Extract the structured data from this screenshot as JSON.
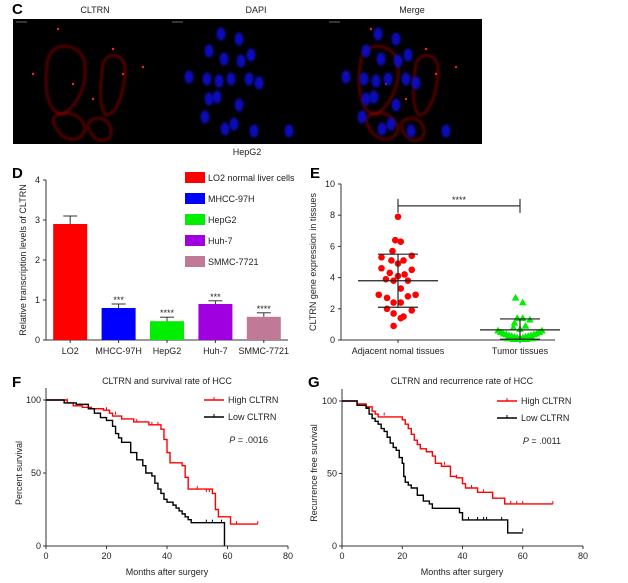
{
  "panel_labels": {
    "c": "C",
    "d": "D",
    "e": "E",
    "f": "F",
    "g": "G"
  },
  "panel_c": {
    "titles": [
      "CLTRN",
      "DAPI",
      "Merge"
    ],
    "caption": "HepG2",
    "colors": {
      "cltrn": "#b00000",
      "dapi": "#1010d0"
    }
  },
  "chart_data": [
    {
      "id": "D",
      "type": "bar",
      "title": "",
      "categories": [
        "LO2",
        "MHCC-97H",
        "HepG2",
        "Huh-7",
        "SMMC-7721"
      ],
      "values": [
        2.9,
        0.8,
        0.47,
        0.9,
        0.58
      ],
      "errors": [
        0.2,
        0.1,
        0.1,
        0.08,
        0.1
      ],
      "significance": [
        "",
        "***",
        "****",
        "***",
        "****"
      ],
      "colors": [
        "#ff0000",
        "#0000ff",
        "#00ee00",
        "#a000e0",
        "#c07a98"
      ],
      "legend": [
        "LO2 normal liver cells",
        "MHCC-97H",
        "HepG2",
        "Huh-7",
        "SMMC-7721"
      ],
      "legend_position": "top-right",
      "xlabel": "",
      "ylabel": "Relative transcription levels of CLTRN",
      "ylim": [
        0,
        4
      ],
      "yticks": [
        0,
        1,
        2,
        3,
        4
      ]
    },
    {
      "id": "E",
      "type": "scatter",
      "categories": [
        "Adjacent nomal tissues",
        "Tumor tissues"
      ],
      "ylabel": "CLTRN gene expression in tissues",
      "ylim": [
        0,
        10
      ],
      "yticks": [
        0,
        2,
        4,
        6,
        8,
        10
      ],
      "significance": "****",
      "series": [
        {
          "name": "Adjacent nomal tissues",
          "color": "#ff0000",
          "marker": "circle",
          "mean": 3.8,
          "sd_low": 2.1,
          "sd_high": 5.5,
          "points": [
            [
              0.0,
              7.9
            ],
            [
              -0.05,
              6.4
            ],
            [
              0.05,
              6.3
            ],
            [
              -0.1,
              5.7
            ],
            [
              -0.3,
              5.3
            ],
            [
              -0.12,
              5.1
            ],
            [
              0.0,
              4.9
            ],
            [
              0.1,
              5.1
            ],
            [
              0.25,
              5.4
            ],
            [
              -0.3,
              4.6
            ],
            [
              -0.15,
              4.3
            ],
            [
              0.0,
              4.1
            ],
            [
              0.12,
              4.2
            ],
            [
              0.25,
              4.5
            ],
            [
              -0.22,
              3.9
            ],
            [
              -0.08,
              3.8
            ],
            [
              0.18,
              3.8
            ],
            [
              0.05,
              3.3
            ],
            [
              -0.35,
              2.9
            ],
            [
              -0.2,
              2.7
            ],
            [
              0.18,
              2.8
            ],
            [
              0.32,
              2.9
            ],
            [
              -0.08,
              2.4
            ],
            [
              0.05,
              2.4
            ],
            [
              -0.2,
              2.0
            ],
            [
              0.25,
              1.9
            ],
            [
              -0.08,
              1.7
            ],
            [
              0.05,
              1.4
            ],
            [
              0.1,
              1.5
            ],
            [
              -0.08,
              0.9
            ]
          ]
        },
        {
          "name": "Tumor tissues",
          "color": "#00ee00",
          "marker": "triangle",
          "mean": 0.65,
          "sd_low": 0.05,
          "sd_high": 1.35,
          "points": [
            [
              -0.08,
              2.7
            ],
            [
              0.05,
              2.4
            ],
            [
              -0.1,
              1.1
            ],
            [
              -0.05,
              1.4
            ],
            [
              0.05,
              1.4
            ],
            [
              0.18,
              1.3
            ],
            [
              -0.12,
              0.8
            ],
            [
              0.1,
              0.9
            ],
            [
              0.0,
              0.7
            ],
            [
              -0.35,
              0.5
            ],
            [
              -0.3,
              0.4
            ],
            [
              -0.25,
              0.35
            ],
            [
              -0.2,
              0.3
            ],
            [
              -0.15,
              0.25
            ],
            [
              -0.1,
              0.2
            ],
            [
              -0.05,
              0.15
            ],
            [
              0.0,
              0.1
            ],
            [
              0.05,
              0.15
            ],
            [
              0.1,
              0.2
            ],
            [
              0.15,
              0.25
            ],
            [
              0.2,
              0.3
            ],
            [
              0.25,
              0.35
            ],
            [
              0.3,
              0.4
            ],
            [
              0.35,
              0.5
            ],
            [
              -0.4,
              0.6
            ],
            [
              0.4,
              0.6
            ],
            [
              -0.22,
              0.1
            ],
            [
              0.22,
              0.1
            ],
            [
              0.0,
              0.05
            ],
            [
              -0.12,
              0.05
            ],
            [
              0.12,
              0.05
            ]
          ]
        }
      ]
    },
    {
      "id": "F",
      "type": "line",
      "title": "CLTRN and survival rate of HCC",
      "xlabel": "Months after surgery",
      "ylabel": "Percent survival",
      "xlim": [
        0,
        80
      ],
      "ylim": [
        0,
        100
      ],
      "xticks": [
        0,
        20,
        40,
        60,
        80
      ],
      "yticks": [
        0,
        50,
        100
      ],
      "legend_position": "top-right",
      "annotation": {
        "p_label": "P",
        "p_value": " = .0016"
      },
      "series": [
        {
          "name": "High CLTRN",
          "color": "#ff0000",
          "steps": [
            [
              0,
              100
            ],
            [
              7,
              98
            ],
            [
              9,
              96
            ],
            [
              12,
              95
            ],
            [
              15,
              94
            ],
            [
              19,
              93
            ],
            [
              21,
              91
            ],
            [
              22,
              89
            ],
            [
              25,
              87
            ],
            [
              29,
              85
            ],
            [
              34,
              83
            ],
            [
              38,
              80
            ],
            [
              39,
              73
            ],
            [
              40,
              64
            ],
            [
              41,
              57
            ],
            [
              45,
              55
            ],
            [
              46,
              47
            ],
            [
              47,
              39
            ],
            [
              55,
              36
            ],
            [
              56,
              25
            ],
            [
              57,
              20
            ],
            [
              61,
              15
            ],
            [
              70,
              15
            ]
          ],
          "censors": [
            [
              7,
              99
            ],
            [
              20,
              93
            ],
            [
              23,
              90
            ],
            [
              30,
              85
            ],
            [
              35,
              83
            ],
            [
              37,
              83
            ],
            [
              50,
              39
            ],
            [
              53,
              37
            ],
            [
              54,
              37
            ],
            [
              63,
              15
            ],
            [
              70,
              15
            ]
          ]
        },
        {
          "name": "Low CLTRN",
          "color": "#000000",
          "steps": [
            [
              0,
              100
            ],
            [
              6,
              98
            ],
            [
              10,
              97
            ],
            [
              14,
              94
            ],
            [
              16,
              91
            ],
            [
              18,
              88
            ],
            [
              20,
              86
            ],
            [
              22,
              82
            ],
            [
              23,
              77
            ],
            [
              24,
              74
            ],
            [
              25,
              71
            ],
            [
              28,
              64
            ],
            [
              30,
              59
            ],
            [
              32,
              55
            ],
            [
              33,
              50
            ],
            [
              35,
              48
            ],
            [
              36,
              43
            ],
            [
              37,
              39
            ],
            [
              38,
              36
            ],
            [
              39,
              32
            ],
            [
              40,
              30
            ],
            [
              42,
              28
            ],
            [
              43,
              26
            ],
            [
              44,
              24
            ],
            [
              45,
              22
            ],
            [
              46,
              20
            ],
            [
              47,
              18
            ],
            [
              48,
              16
            ],
            [
              59,
              16
            ],
            [
              59,
              0
            ]
          ],
          "censors": [
            [
              53,
              16
            ],
            [
              55,
              16
            ],
            [
              58,
              16
            ]
          ]
        }
      ]
    },
    {
      "id": "G",
      "type": "line",
      "title": "CLTRN and recurrence rate of HCC",
      "xlabel": "Months after surgery",
      "ylabel": "Recurrence free survival",
      "xlim": [
        0,
        80
      ],
      "ylim": [
        0,
        100
      ],
      "xticks": [
        0,
        20,
        40,
        60,
        80
      ],
      "yticks": [
        0,
        50,
        100
      ],
      "legend_position": "top-right",
      "annotation": {
        "p_label": "P",
        "p_value": " = .0011"
      },
      "series": [
        {
          "name": "High CLTRN",
          "color": "#ff0000",
          "steps": [
            [
              0,
              100
            ],
            [
              5,
              98
            ],
            [
              8,
              96
            ],
            [
              10,
              93
            ],
            [
              11,
              91
            ],
            [
              12,
              89
            ],
            [
              20,
              87
            ],
            [
              21,
              84
            ],
            [
              22,
              81
            ],
            [
              23,
              77
            ],
            [
              24,
              73
            ],
            [
              25,
              70
            ],
            [
              26,
              67
            ],
            [
              28,
              65
            ],
            [
              30,
              62
            ],
            [
              31,
              57
            ],
            [
              33,
              55
            ],
            [
              36,
              48
            ],
            [
              38,
              47
            ],
            [
              40,
              43
            ],
            [
              41,
              40
            ],
            [
              45,
              37
            ],
            [
              50,
              33
            ],
            [
              54,
              29
            ],
            [
              70,
              29
            ]
          ],
          "censors": [
            [
              14,
              90
            ],
            [
              34,
              56
            ],
            [
              38,
              47
            ],
            [
              43,
              40
            ],
            [
              47,
              37
            ],
            [
              56,
              29
            ],
            [
              58,
              29
            ],
            [
              60,
              29
            ],
            [
              70,
              29
            ]
          ]
        },
        {
          "name": "Low CLTRN",
          "color": "#000000",
          "steps": [
            [
              0,
              100
            ],
            [
              5,
              97
            ],
            [
              8,
              95
            ],
            [
              9,
              91
            ],
            [
              10,
              88
            ],
            [
              11,
              86
            ],
            [
              12,
              84
            ],
            [
              13,
              81
            ],
            [
              14,
              79
            ],
            [
              15,
              75
            ],
            [
              16,
              71
            ],
            [
              17,
              68
            ],
            [
              18,
              66
            ],
            [
              19,
              61
            ],
            [
              20,
              57
            ],
            [
              20.5,
              48
            ],
            [
              21,
              44
            ],
            [
              22,
              42
            ],
            [
              23,
              40
            ],
            [
              25,
              35
            ],
            [
              27,
              31
            ],
            [
              29,
              29
            ],
            [
              30,
              26
            ],
            [
              38,
              26
            ],
            [
              39,
              23
            ],
            [
              40,
              18
            ],
            [
              55,
              18
            ],
            [
              55,
              9
            ],
            [
              60,
              9
            ]
          ],
          "censors": [
            [
              42,
              18
            ],
            [
              45,
              18
            ],
            [
              47,
              18
            ],
            [
              48,
              18
            ],
            [
              53,
              18
            ],
            [
              60,
              10
            ]
          ]
        }
      ]
    }
  ]
}
